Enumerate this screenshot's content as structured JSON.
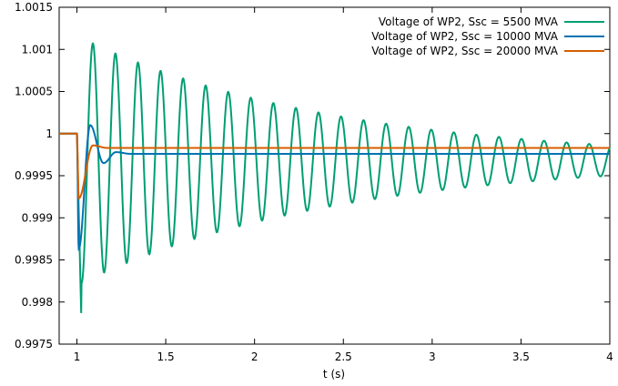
{
  "chart_data": {
    "type": "line",
    "title": "",
    "xlabel": "t (s)",
    "ylabel": "",
    "xlim": [
      0.9,
      4.0
    ],
    "ylim": [
      0.9975,
      1.0015
    ],
    "x_ticks": [
      1,
      1.5,
      2,
      2.5,
      3,
      3.5,
      4
    ],
    "x_tick_labels": [
      "1",
      "1.5",
      "2",
      "2.5",
      "3",
      "3.5",
      "4"
    ],
    "y_ticks": [
      0.9975,
      0.998,
      0.9985,
      0.999,
      0.9995,
      1.0,
      1.0005,
      1.001,
      1.0015
    ],
    "y_tick_labels": [
      "0.9975",
      "0.998",
      "0.9985",
      "0.999",
      "0.9995",
      "1",
      "1.0005",
      "1.001",
      "1.0015"
    ],
    "grid": false,
    "legend_position": "top-right",
    "series": [
      {
        "name": "Voltage of WP2, Ssc = 5500 MVA",
        "color": "#009e73",
        "model": {
          "pre_value": 1.0,
          "step_time": 1.0,
          "final_value": 0.99968,
          "amplitude": 0.00148,
          "decay_rate": 0.7,
          "period": 0.127,
          "first_peak_time": 1.09,
          "initial_dip": 0.99778
        }
      },
      {
        "name": "Voltage of WP2, Ssc = 10000 MVA",
        "color": "#0072b2",
        "model": {
          "pre_value": 1.0,
          "step_time": 1.0,
          "final_value": 0.99976,
          "initial_dip": 0.99863,
          "peaks": [
            [
              1.075,
              1.0001
            ],
            [
              1.15,
              0.99965
            ],
            [
              1.22,
              0.99978
            ]
          ]
        }
      },
      {
        "name": "Voltage of WP2, Ssc = 20000 MVA",
        "color": "#d55e00",
        "model": {
          "pre_value": 1.0,
          "step_time": 1.0,
          "final_value": 0.99983,
          "initial_dip": 0.99923,
          "peaks": [
            [
              1.09,
              0.99986
            ]
          ]
        }
      }
    ]
  }
}
